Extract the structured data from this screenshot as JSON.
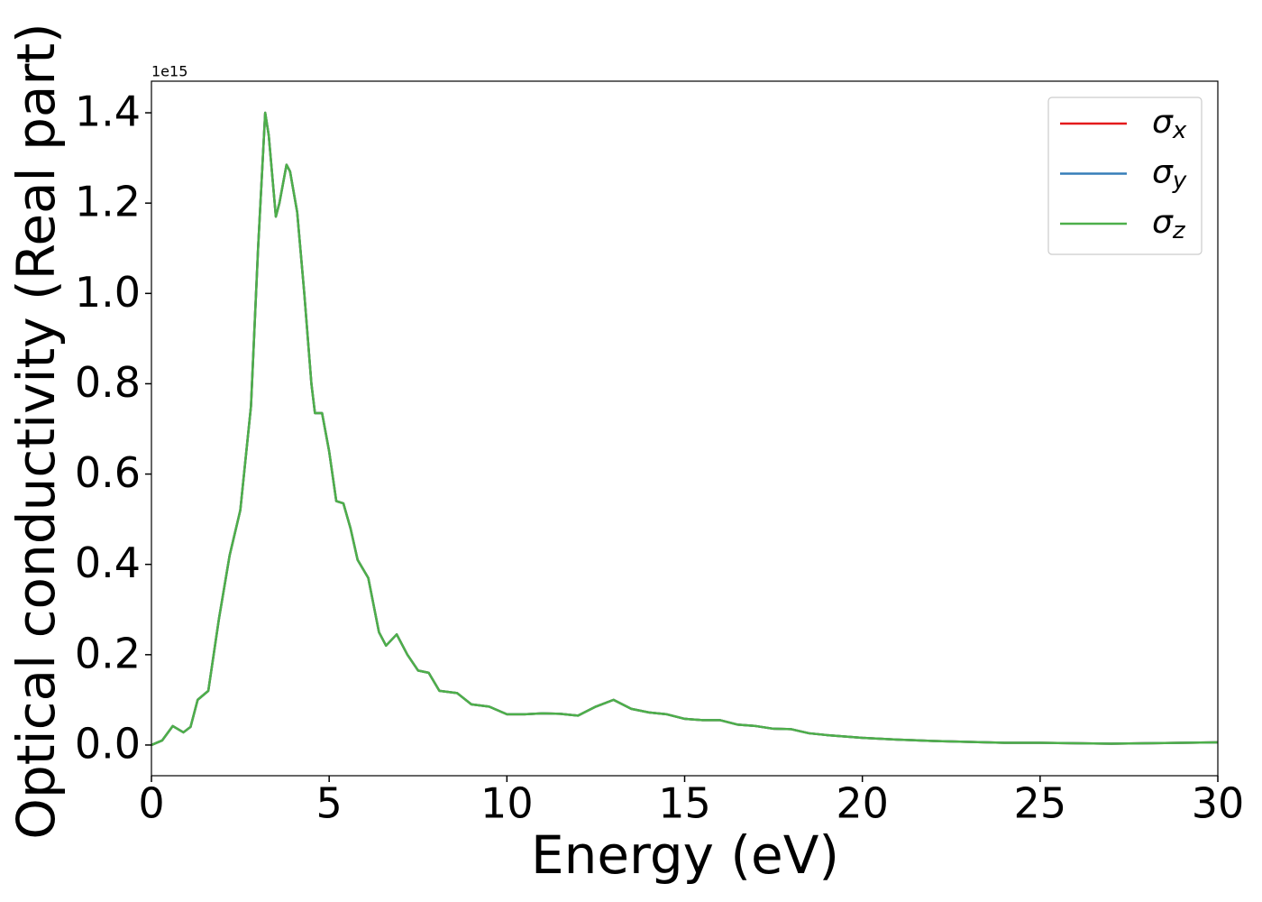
{
  "chart_data": {
    "type": "line",
    "x_label": "Energy (eV)",
    "y_label": "Optical conductivity (Real part)",
    "y_offset_label": "1e15",
    "x": [
      0,
      0.3,
      0.6,
      0.9,
      1.1,
      1.3,
      1.6,
      1.9,
      2.2,
      2.5,
      2.8,
      3.0,
      3.2,
      3.3,
      3.5,
      3.6,
      3.8,
      3.9,
      4.1,
      4.3,
      4.5,
      4.6,
      4.8,
      5.0,
      5.2,
      5.4,
      5.6,
      5.8,
      6.1,
      6.4,
      6.6,
      6.9,
      7.2,
      7.5,
      7.8,
      8.1,
      8.6,
      9.0,
      9.5,
      10,
      10.5,
      11,
      11.5,
      12,
      12.5,
      13,
      13.5,
      14,
      14.5,
      15,
      15.5,
      16,
      16.5,
      17,
      17.5,
      18,
      18.5,
      19,
      20,
      21,
      22,
      23,
      24,
      25,
      26,
      27,
      28,
      29,
      30
    ],
    "series": [
      {
        "name": "σx",
        "color": "#e41a1c",
        "values": [
          0.0,
          0.01,
          0.042,
          0.028,
          0.04,
          0.1,
          0.12,
          0.28,
          0.42,
          0.52,
          0.75,
          1.1,
          1.4,
          1.35,
          1.17,
          1.2,
          1.285,
          1.27,
          1.18,
          1.0,
          0.8,
          0.735,
          0.735,
          0.65,
          0.54,
          0.535,
          0.48,
          0.41,
          0.37,
          0.25,
          0.22,
          0.245,
          0.2,
          0.165,
          0.16,
          0.12,
          0.115,
          0.09,
          0.085,
          0.068,
          0.068,
          0.07,
          0.069,
          0.065,
          0.085,
          0.1,
          0.08,
          0.072,
          0.068,
          0.058,
          0.055,
          0.055,
          0.045,
          0.042,
          0.036,
          0.035,
          0.026,
          0.022,
          0.016,
          0.012,
          0.009,
          0.007,
          0.005,
          0.005,
          0.004,
          0.003,
          0.004,
          0.005,
          0.006
        ]
      },
      {
        "name": "σy",
        "color": "#377eb8",
        "values": [
          0.0,
          0.01,
          0.042,
          0.028,
          0.04,
          0.1,
          0.12,
          0.28,
          0.42,
          0.52,
          0.75,
          1.1,
          1.4,
          1.35,
          1.17,
          1.2,
          1.285,
          1.27,
          1.18,
          1.0,
          0.8,
          0.735,
          0.735,
          0.65,
          0.54,
          0.535,
          0.48,
          0.41,
          0.37,
          0.25,
          0.22,
          0.245,
          0.2,
          0.165,
          0.16,
          0.12,
          0.115,
          0.09,
          0.085,
          0.068,
          0.068,
          0.07,
          0.069,
          0.065,
          0.085,
          0.1,
          0.08,
          0.072,
          0.068,
          0.058,
          0.055,
          0.055,
          0.045,
          0.042,
          0.036,
          0.035,
          0.026,
          0.022,
          0.016,
          0.012,
          0.009,
          0.007,
          0.005,
          0.005,
          0.004,
          0.003,
          0.004,
          0.005,
          0.006
        ]
      },
      {
        "name": "σz",
        "color": "#4daf4a",
        "values": [
          0.0,
          0.01,
          0.042,
          0.028,
          0.04,
          0.1,
          0.12,
          0.28,
          0.42,
          0.52,
          0.75,
          1.1,
          1.4,
          1.35,
          1.17,
          1.2,
          1.285,
          1.27,
          1.18,
          1.0,
          0.8,
          0.735,
          0.735,
          0.65,
          0.54,
          0.535,
          0.48,
          0.41,
          0.37,
          0.25,
          0.22,
          0.245,
          0.2,
          0.165,
          0.16,
          0.12,
          0.115,
          0.09,
          0.085,
          0.068,
          0.068,
          0.07,
          0.069,
          0.065,
          0.085,
          0.1,
          0.08,
          0.072,
          0.068,
          0.058,
          0.055,
          0.055,
          0.045,
          0.042,
          0.036,
          0.035,
          0.026,
          0.022,
          0.016,
          0.012,
          0.009,
          0.007,
          0.005,
          0.005,
          0.004,
          0.003,
          0.004,
          0.005,
          0.006
        ]
      }
    ],
    "xlim": [
      0,
      30
    ],
    "xticks": [
      0,
      5,
      10,
      15,
      20,
      25,
      30
    ],
    "ylim": [
      -0.068,
      1.47
    ],
    "yticks": [
      {
        "value": 0,
        "label": "0.0"
      },
      0.2,
      0.4,
      0.6,
      0.8,
      {
        "value": 1,
        "label": "1.0"
      },
      1.2,
      1.4
    ],
    "legend": "upper right",
    "grid": false
  }
}
